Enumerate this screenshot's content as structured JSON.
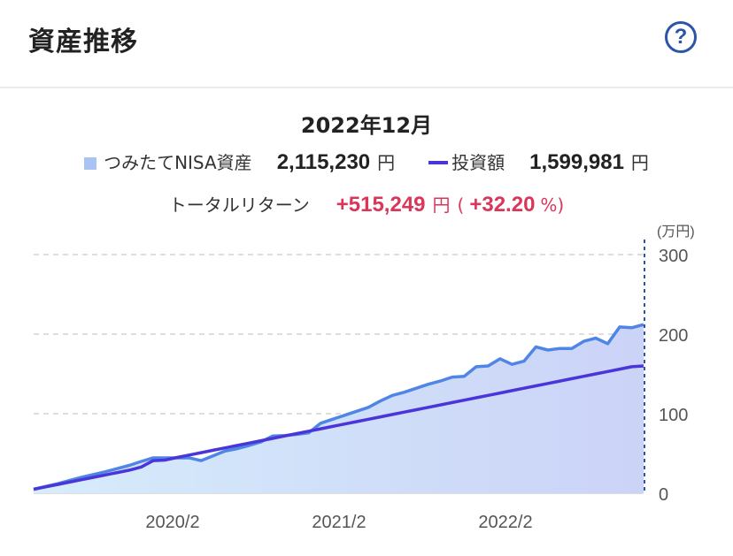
{
  "header": {
    "title": "資産推移",
    "help_label": "?"
  },
  "summary": {
    "period": "2022年12月",
    "asset_label": "つみたてNISA資産",
    "asset_value": "2,115,230",
    "asset_unit": "円",
    "invest_label": "投資額",
    "invest_value": "1,599,981",
    "invest_unit": "円",
    "return_label": "トータルリターン",
    "return_value": "+515,249",
    "return_unit": "円",
    "return_paren_open": "(",
    "return_pct": "+32.20",
    "return_pct_unit": "%)"
  },
  "colors": {
    "asset_line": "#4f86e6",
    "asset_fill": "#a9c4f2",
    "invest_line": "#4a36d8",
    "return_text": "#d9365a"
  },
  "chart_data": {
    "type": "area",
    "unit_label": "(万円)",
    "ylim": [
      0,
      300
    ],
    "yticks": [
      "0",
      "100",
      "200",
      "300"
    ],
    "xticks": [
      "2020/2",
      "2021/2",
      "2022/2"
    ],
    "legend": "top-center",
    "grid": true,
    "series": [
      {
        "name": "つみたてNISA資産",
        "values": [
          5,
          8.5,
          12,
          16,
          20,
          23.5,
          27,
          31,
          35,
          40,
          44.5,
          44.5,
          44.5,
          44.5,
          41,
          47,
          53,
          56,
          60,
          64.5,
          72,
          72.5,
          74,
          76,
          88,
          93,
          98,
          103,
          108,
          116,
          123,
          127,
          132,
          137,
          141,
          146,
          147,
          159,
          160,
          169,
          162,
          166,
          184,
          180,
          182,
          182,
          191,
          195,
          188,
          209,
          208,
          212
        ]
      },
      {
        "name": "投資額",
        "values": [
          5,
          8,
          11,
          14,
          17,
          20,
          23,
          26,
          29,
          33,
          41,
          41.7,
          45,
          48,
          51,
          54,
          57,
          60,
          63,
          66,
          69,
          72,
          75,
          78,
          81,
          84,
          87,
          90,
          93,
          96,
          99,
          102,
          105,
          108,
          111,
          114,
          117,
          120,
          123,
          126,
          129,
          132,
          135,
          138,
          141,
          144,
          147,
          150,
          153,
          156,
          159,
          160
        ]
      }
    ]
  }
}
